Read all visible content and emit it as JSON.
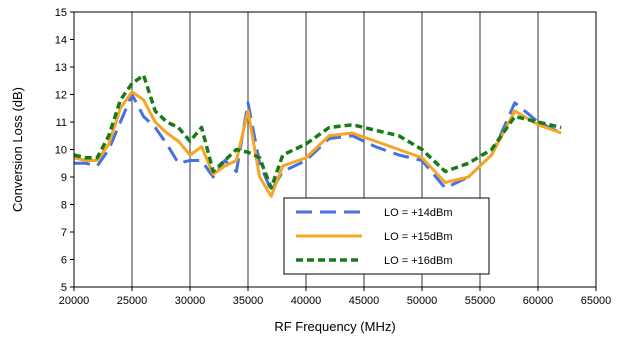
{
  "chart_data": {
    "type": "line",
    "xlabel": "RF Frequency (MHz)",
    "ylabel": "Conversion Loss (dB)",
    "xlim": [
      20000,
      65000
    ],
    "ylim": [
      5,
      15
    ],
    "xticks": [
      20000,
      25000,
      30000,
      35000,
      40000,
      45000,
      50000,
      55000,
      60000,
      65000
    ],
    "yticks": [
      5,
      6,
      7,
      8,
      9,
      10,
      11,
      12,
      13,
      14,
      15
    ],
    "grid": {
      "vertical": true,
      "horizontal": false
    },
    "legend_position": "bottom-center",
    "series": [
      {
        "name": "LO = +14dBm",
        "color": "#4472e0",
        "dash": "long-dash",
        "x": [
          20000,
          21000,
          22000,
          23000,
          24000,
          25000,
          26000,
          27000,
          28000,
          29000,
          30000,
          31000,
          32000,
          33000,
          34000,
          35000,
          36000,
          37000,
          38000,
          40000,
          42000,
          44000,
          46000,
          48000,
          50000,
          52000,
          54000,
          56000,
          58000,
          60000,
          62000
        ],
        "values": [
          9.5,
          9.5,
          9.4,
          10.0,
          11.0,
          12.0,
          11.2,
          10.8,
          10.2,
          9.5,
          9.6,
          9.6,
          9.0,
          9.6,
          9.2,
          11.7,
          9.5,
          8.5,
          9.2,
          9.6,
          10.4,
          10.5,
          10.1,
          9.8,
          9.6,
          8.6,
          9.0,
          9.8,
          11.7,
          11.0,
          10.6
        ]
      },
      {
        "name": "LO = +15dBm",
        "color": "#f5a623",
        "dash": "solid",
        "x": [
          20000,
          21000,
          22000,
          23000,
          24000,
          25000,
          26000,
          27000,
          28000,
          29000,
          30000,
          31000,
          32000,
          33000,
          34000,
          35000,
          36000,
          37000,
          38000,
          40000,
          42000,
          44000,
          46000,
          48000,
          50000,
          52000,
          54000,
          56000,
          58000,
          60000,
          62000
        ],
        "values": [
          9.7,
          9.6,
          9.6,
          10.2,
          11.5,
          12.1,
          11.8,
          11.0,
          10.6,
          10.3,
          9.8,
          10.1,
          9.1,
          9.4,
          9.6,
          11.4,
          9.0,
          8.3,
          9.4,
          9.7,
          10.5,
          10.6,
          10.3,
          10.0,
          9.7,
          8.8,
          9.0,
          9.8,
          11.4,
          10.9,
          10.6
        ]
      },
      {
        "name": "LO = +16dBm",
        "color": "#1a7a1a",
        "dash": "short-dash",
        "x": [
          20000,
          21000,
          22000,
          23000,
          24000,
          25000,
          26000,
          27000,
          28000,
          29000,
          30000,
          31000,
          32000,
          33000,
          34000,
          35000,
          36000,
          37000,
          38000,
          40000,
          42000,
          44000,
          46000,
          48000,
          50000,
          52000,
          54000,
          56000,
          58000,
          60000,
          62000
        ],
        "values": [
          9.8,
          9.7,
          9.7,
          10.5,
          11.8,
          12.4,
          12.7,
          11.4,
          11.0,
          10.8,
          10.3,
          10.8,
          9.2,
          9.6,
          10.0,
          9.9,
          9.7,
          8.6,
          9.8,
          10.2,
          10.8,
          10.9,
          10.7,
          10.5,
          10.0,
          9.2,
          9.5,
          10.0,
          11.2,
          11.0,
          10.8
        ]
      }
    ]
  }
}
